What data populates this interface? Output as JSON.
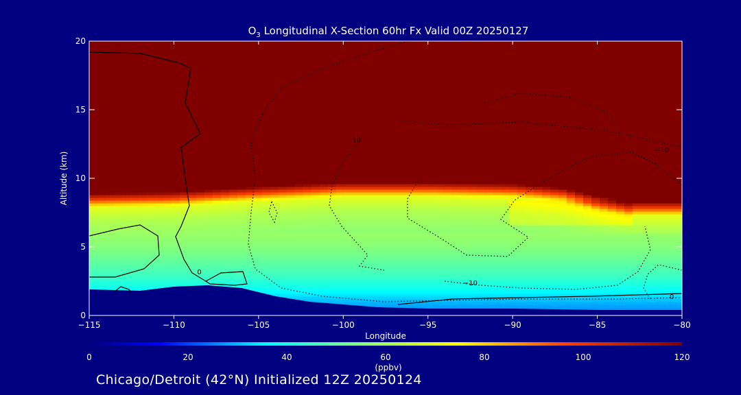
{
  "chart_data": {
    "type": "heatmap",
    "title_prefix": "O",
    "title_sub": "3",
    "title_rest": " Longitudinal X-Section 60hr  Fx Valid 00Z 20250127",
    "xlabel": "Longitude",
    "ylabel": "Altitude (km)",
    "xlim": [
      -115,
      -80
    ],
    "ylim": [
      0,
      20
    ],
    "xticks": [
      -115,
      -110,
      -105,
      -100,
      -95,
      -90,
      -85,
      -80
    ],
    "xtick_labels": [
      "−115",
      "−110",
      "−105",
      "−100",
      "−95",
      "−90",
      "−85",
      "−80"
    ],
    "yticks": [
      0,
      5,
      10,
      15,
      20
    ],
    "ytick_labels": [
      "0",
      "5",
      "10",
      "15",
      "20"
    ],
    "ozone_ppbv_profile": {
      "levels_km": [
        0,
        1,
        2,
        3,
        4,
        5,
        6,
        7,
        8,
        8.5,
        9,
        10,
        20
      ],
      "values": [
        25,
        30,
        38,
        45,
        50,
        55,
        58,
        62,
        70,
        95,
        120,
        120,
        120
      ]
    },
    "tropopause_km": {
      "x": [
        -115,
        -110,
        -105,
        -100,
        -95,
        -90,
        -87,
        -85,
        -83,
        -80
      ],
      "y": [
        8.8,
        8.9,
        9.3,
        9.6,
        9.6,
        9.5,
        9.2,
        8.6,
        8.2,
        8.2
      ]
    },
    "terrain_km": {
      "x": [
        -115,
        -112,
        -110,
        -108,
        -106,
        -104,
        -102,
        -100,
        -98,
        -95,
        -90,
        -85,
        -80
      ],
      "y": [
        1.9,
        1.8,
        2.1,
        2.2,
        2.0,
        1.4,
        1.0,
        0.8,
        0.6,
        0.5,
        0.5,
        0.4,
        0.4
      ]
    },
    "contour_labels": [
      {
        "text": "0",
        "lon": -108.5,
        "alt": 3.0
      },
      {
        "text": "10",
        "lon": -99.2,
        "alt": 12.6
      },
      {
        "text": "−10",
        "lon": -92.5,
        "alt": 2.2
      },
      {
        "text": "−10",
        "lon": -81.2,
        "alt": 11.9
      },
      {
        "text": "0",
        "lon": -80.6,
        "alt": 1.2
      }
    ],
    "colorbar": {
      "ticks": [
        0,
        20,
        40,
        60,
        80,
        100,
        120
      ],
      "tick_labels": [
        "0",
        "20",
        "40",
        "60",
        "80",
        "100",
        "120"
      ],
      "label": "(ppbv)",
      "range": [
        0,
        120
      ]
    },
    "colors": {
      "background": "#000080",
      "stratosphere": "#800000",
      "terrain": "#000080"
    }
  },
  "footer_text": "Chicago/Detroit (42°N) Initialized 12Z 20250124"
}
